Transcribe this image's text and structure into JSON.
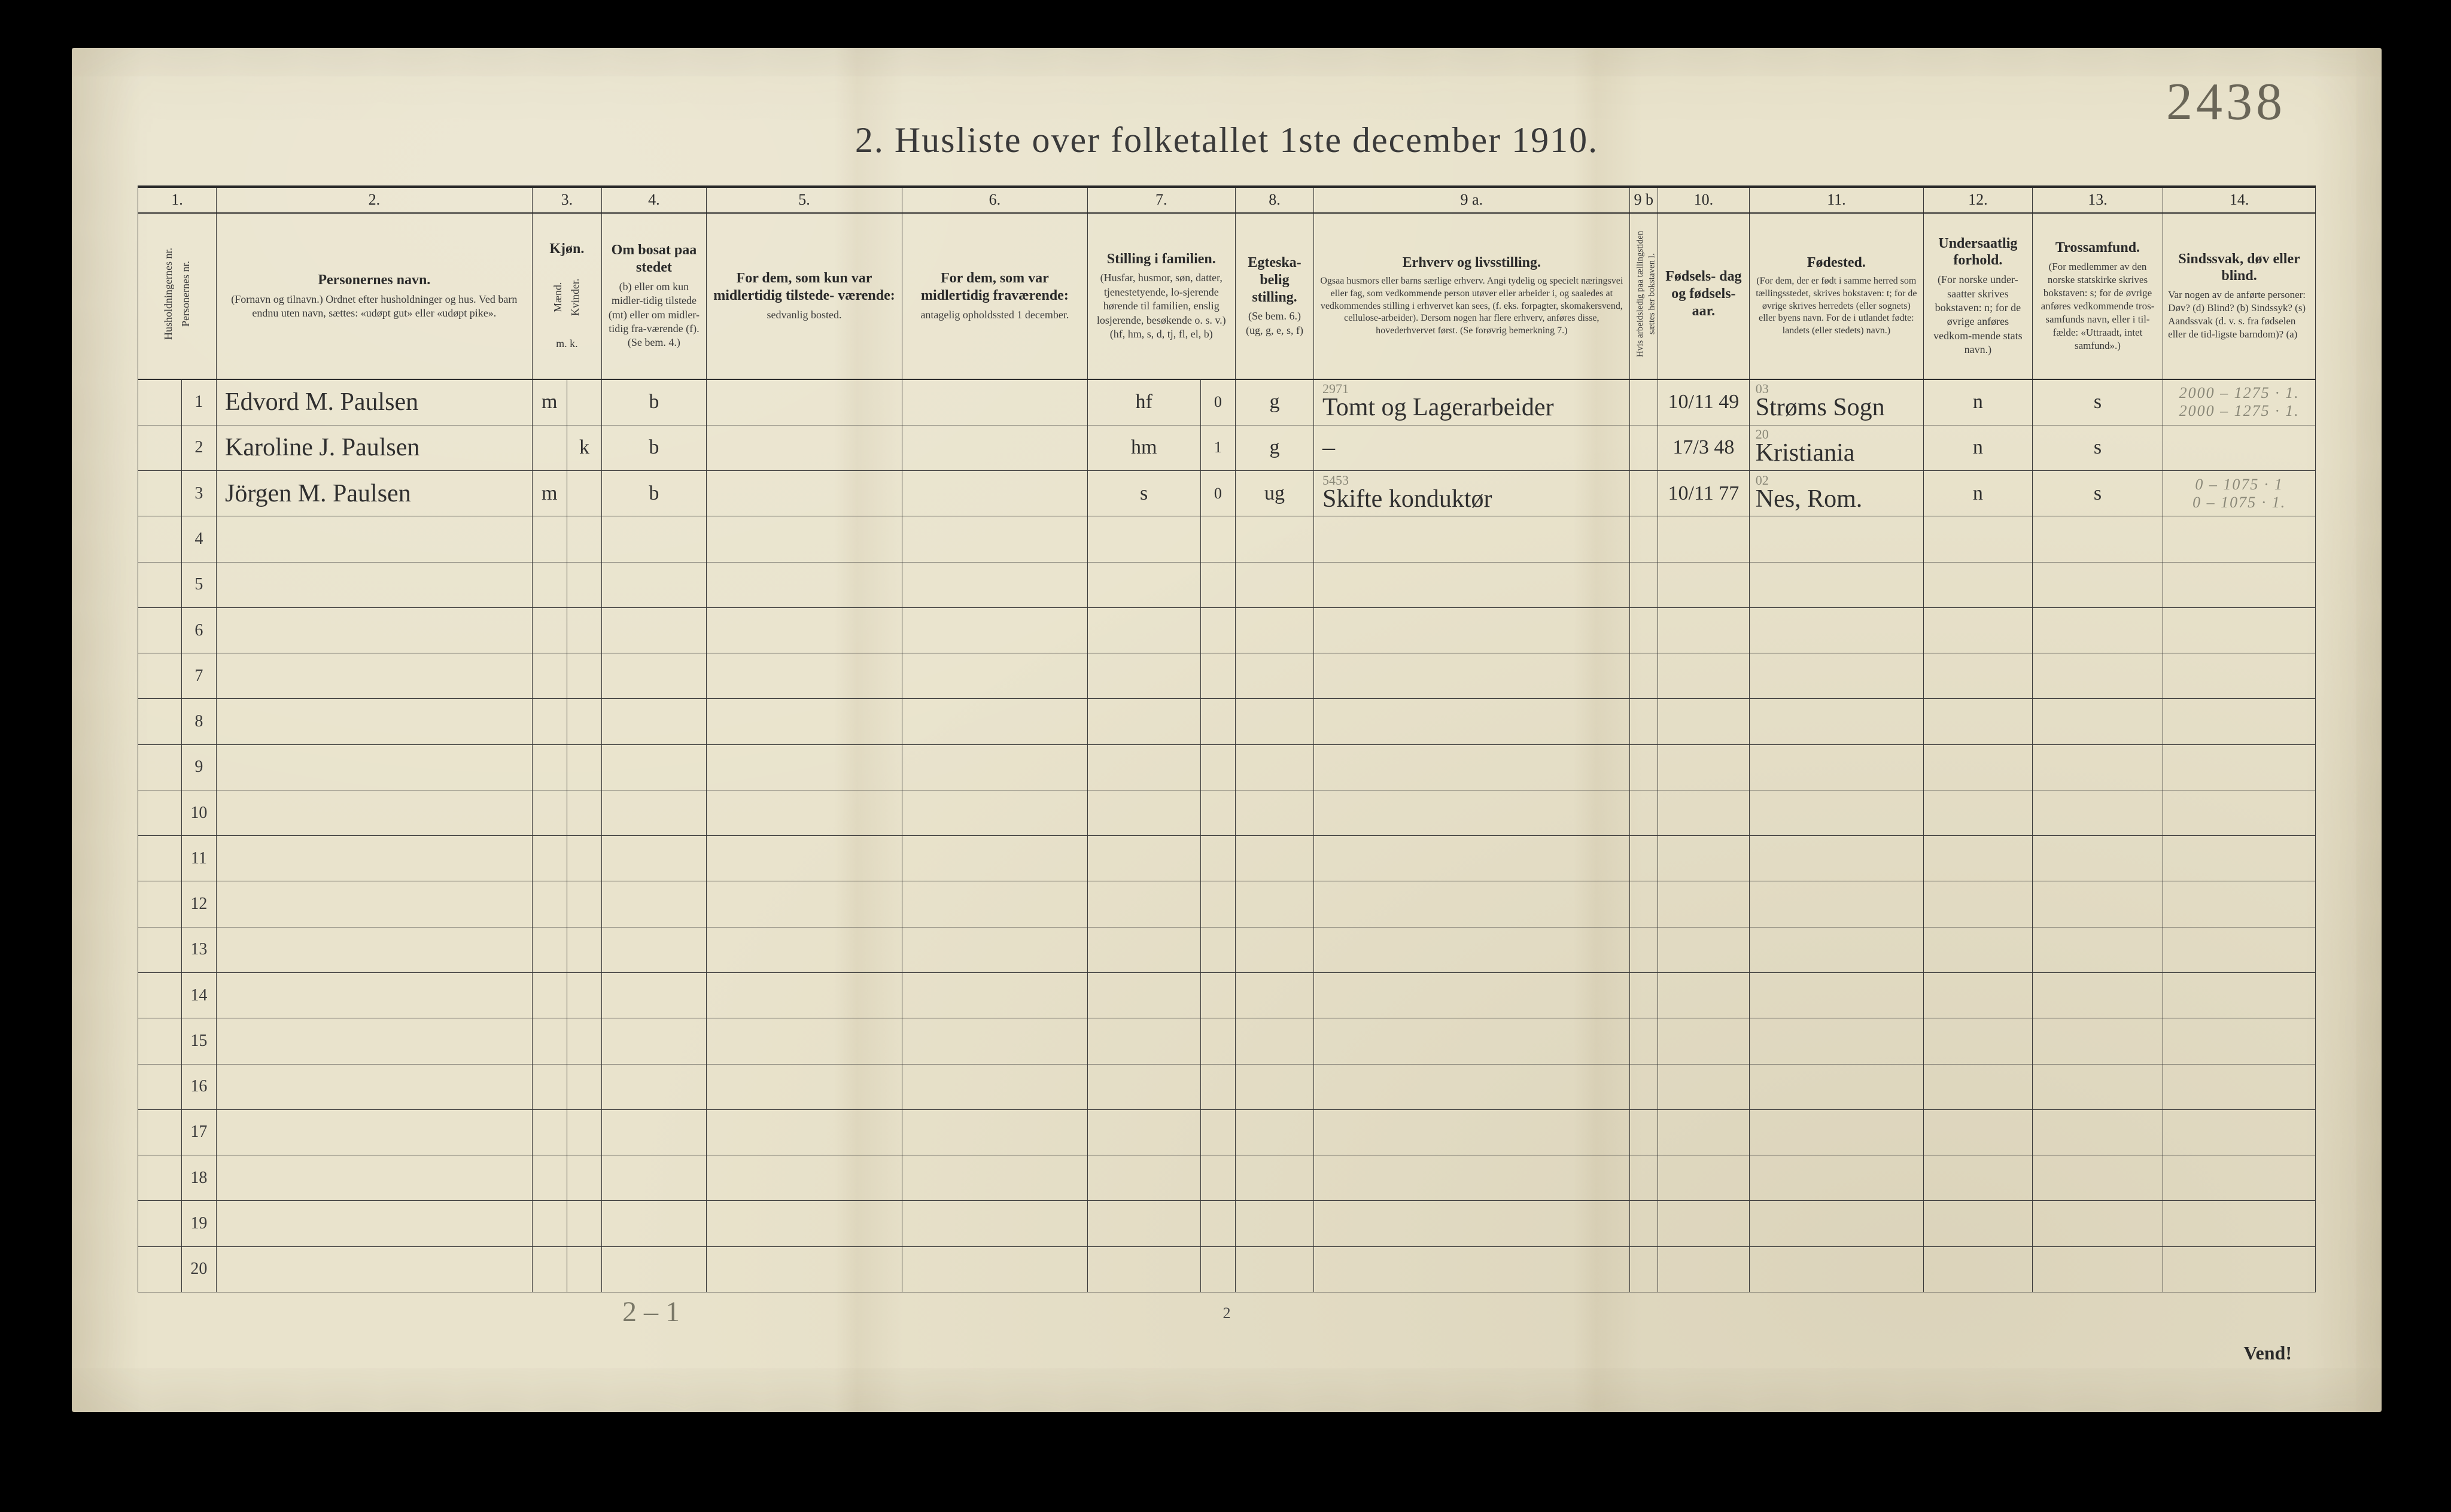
{
  "page": {
    "top_right_number": "2438",
    "title": "2.  Husliste over folketallet 1ste december 1910.",
    "footer_left": "2 – 1",
    "footer_center": "2",
    "vend": "Vend!",
    "colors": {
      "paper": "#e9e3cc",
      "ink": "#2a2a2a",
      "pencil": "#8a8878",
      "border": "#3a3a3a"
    }
  },
  "columns": {
    "nums": [
      "1.",
      "2.",
      "3.",
      "4.",
      "5.",
      "6.",
      "7.",
      "8.",
      "9 a.",
      "9 b",
      "10.",
      "11.",
      "12.",
      "13.",
      "14."
    ],
    "c1": {
      "title": "Husholdningernes nr.",
      "sub": "Personernes nr."
    },
    "c2": {
      "title": "Personernes navn.",
      "sub": "(Fornavn og tilnavn.)\nOrdnet efter husholdninger og hus.\nVed barn endnu uten navn, sættes: «udøpt gut»\neller «udøpt pike»."
    },
    "c3": {
      "title": "Kjøn.",
      "sub_m": "Mænd.",
      "sub_k": "Kvinder.",
      "foot": "m.   k."
    },
    "c4": {
      "title": "Om bosat\npaa stedet",
      "sub": "(b) eller om kun midler-tidig tilstede (mt) eller om midler-tidig fra-værende (f).\n(Se bem. 4.)"
    },
    "c5": {
      "title": "For dem, som kun var\nmidlertidig tilstede-\nværende:",
      "sub": "sedvanlig bosted."
    },
    "c6": {
      "title": "For dem, som var\nmidlertidig\nfraværende:",
      "sub": "antagelig opholdssted\n1 december."
    },
    "c7": {
      "title": "Stilling i familien.",
      "sub": "(Husfar, husmor, søn, datter, tjenestetyende, lo-sjerende hørende til familien, enslig losjerende, besøkende o. s. v.)\n(hf, hm, s, d, tj, fl, el, b)"
    },
    "c8": {
      "title": "Egteska-\nbelig\nstilling.",
      "sub": "(Se bem. 6.)\n(ug, g,\ne, s, f)"
    },
    "c9a": {
      "title": "Erhverv og livsstilling.",
      "sub": "Ogsaa husmors eller barns særlige erhverv.\nAngi tydelig og specielt næringsvei eller fag, som vedkommende person utøver eller arbeider i, og saaledes at vedkommendes stilling i erhvervet kan sees, (f. eks. forpagter, skomakersvend, cellulose-arbeider). Dersom nogen har flere erhverv, anføres disse, hovederhvervet først.\n(Se forøvrig bemerkning 7.)"
    },
    "c9b": {
      "title": "",
      "sub": "Hvis arbeidsledig\npaa tællingstiden sættes\nher bokstaven l."
    },
    "c10": {
      "title": "Fødsels-\ndag\nog\nfødsels-\naar.",
      "sub": ""
    },
    "c11": {
      "title": "Fødested.",
      "sub": "(For dem, der er født i samme herred som tællingsstedet, skrives bokstaven: t;\nfor de øvrige skrives herredets (eller sognets) eller byens navn.\nFor de i utlandet fødte: landets (eller stedets) navn.)"
    },
    "c12": {
      "title": "Undersaatlig\nforhold.",
      "sub": "(For norske under-saatter skrives bokstaven: n;\nfor de øvrige anføres vedkom-mende stats navn.)"
    },
    "c13": {
      "title": "Trossamfund.",
      "sub": "(For medlemmer av den norske statskirke skrives bokstaven: s;\nfor de øvrige anføres vedkommende tros-samfunds navn, eller i til-fælde: «Uttraadt, intet samfund».)"
    },
    "c14": {
      "title": "Sindssvak, døv\neller blind.",
      "sub": "Var nogen av de anførte personer:\nDøv?      (d)\nBlind?    (b)\nSindssyk? (s)\nAandssvak (d. v. s. fra fødselen eller de tid-ligste barndom)? (a)"
    }
  },
  "rows": [
    {
      "num": "1",
      "name": "Edvord M. Paulsen",
      "sex": "m",
      "residence": "b",
      "col5": "",
      "col6": "",
      "family": "hf",
      "family_note": "0",
      "marital": "g",
      "occupation_pencil": "2971",
      "occupation": "Tomt og Lagerarbeider",
      "col9b": "",
      "birth": "10/11 49",
      "birthplace_pencil": "03",
      "birthplace": "Strøms Sogn",
      "nationality": "n",
      "faith": "s",
      "col14": "2000 – 1275 · 1.\n2000 – 1275 · 1."
    },
    {
      "num": "2",
      "name": "Karoline J. Paulsen",
      "sex": "k",
      "residence": "b",
      "col5": "",
      "col6": "",
      "family": "hm",
      "family_note": "1",
      "marital": "g",
      "occupation_pencil": "",
      "occupation": "–",
      "col9b": "",
      "birth": "17/3 48",
      "birthplace_pencil": "20",
      "birthplace": "Kristiania",
      "nationality": "n",
      "faith": "s",
      "col14": ""
    },
    {
      "num": "3",
      "name": "Jörgen M. Paulsen",
      "sex": "m",
      "residence": "b",
      "col5": "",
      "col6": "",
      "family": "s",
      "family_note": "0",
      "marital": "ug",
      "occupation_pencil": "5453",
      "occupation": "Skifte konduktør",
      "col9b": "",
      "birth": "10/11 77",
      "birthplace_pencil": "02",
      "birthplace": "Nes, Rom.",
      "nationality": "n",
      "faith": "s",
      "col14": "0 – 1075 · 1\n0 – 1075 · 1."
    }
  ],
  "empty_rows": [
    "4",
    "5",
    "6",
    "7",
    "8",
    "9",
    "10",
    "11",
    "12",
    "13",
    "14",
    "15",
    "16",
    "17",
    "18",
    "19",
    "20"
  ]
}
